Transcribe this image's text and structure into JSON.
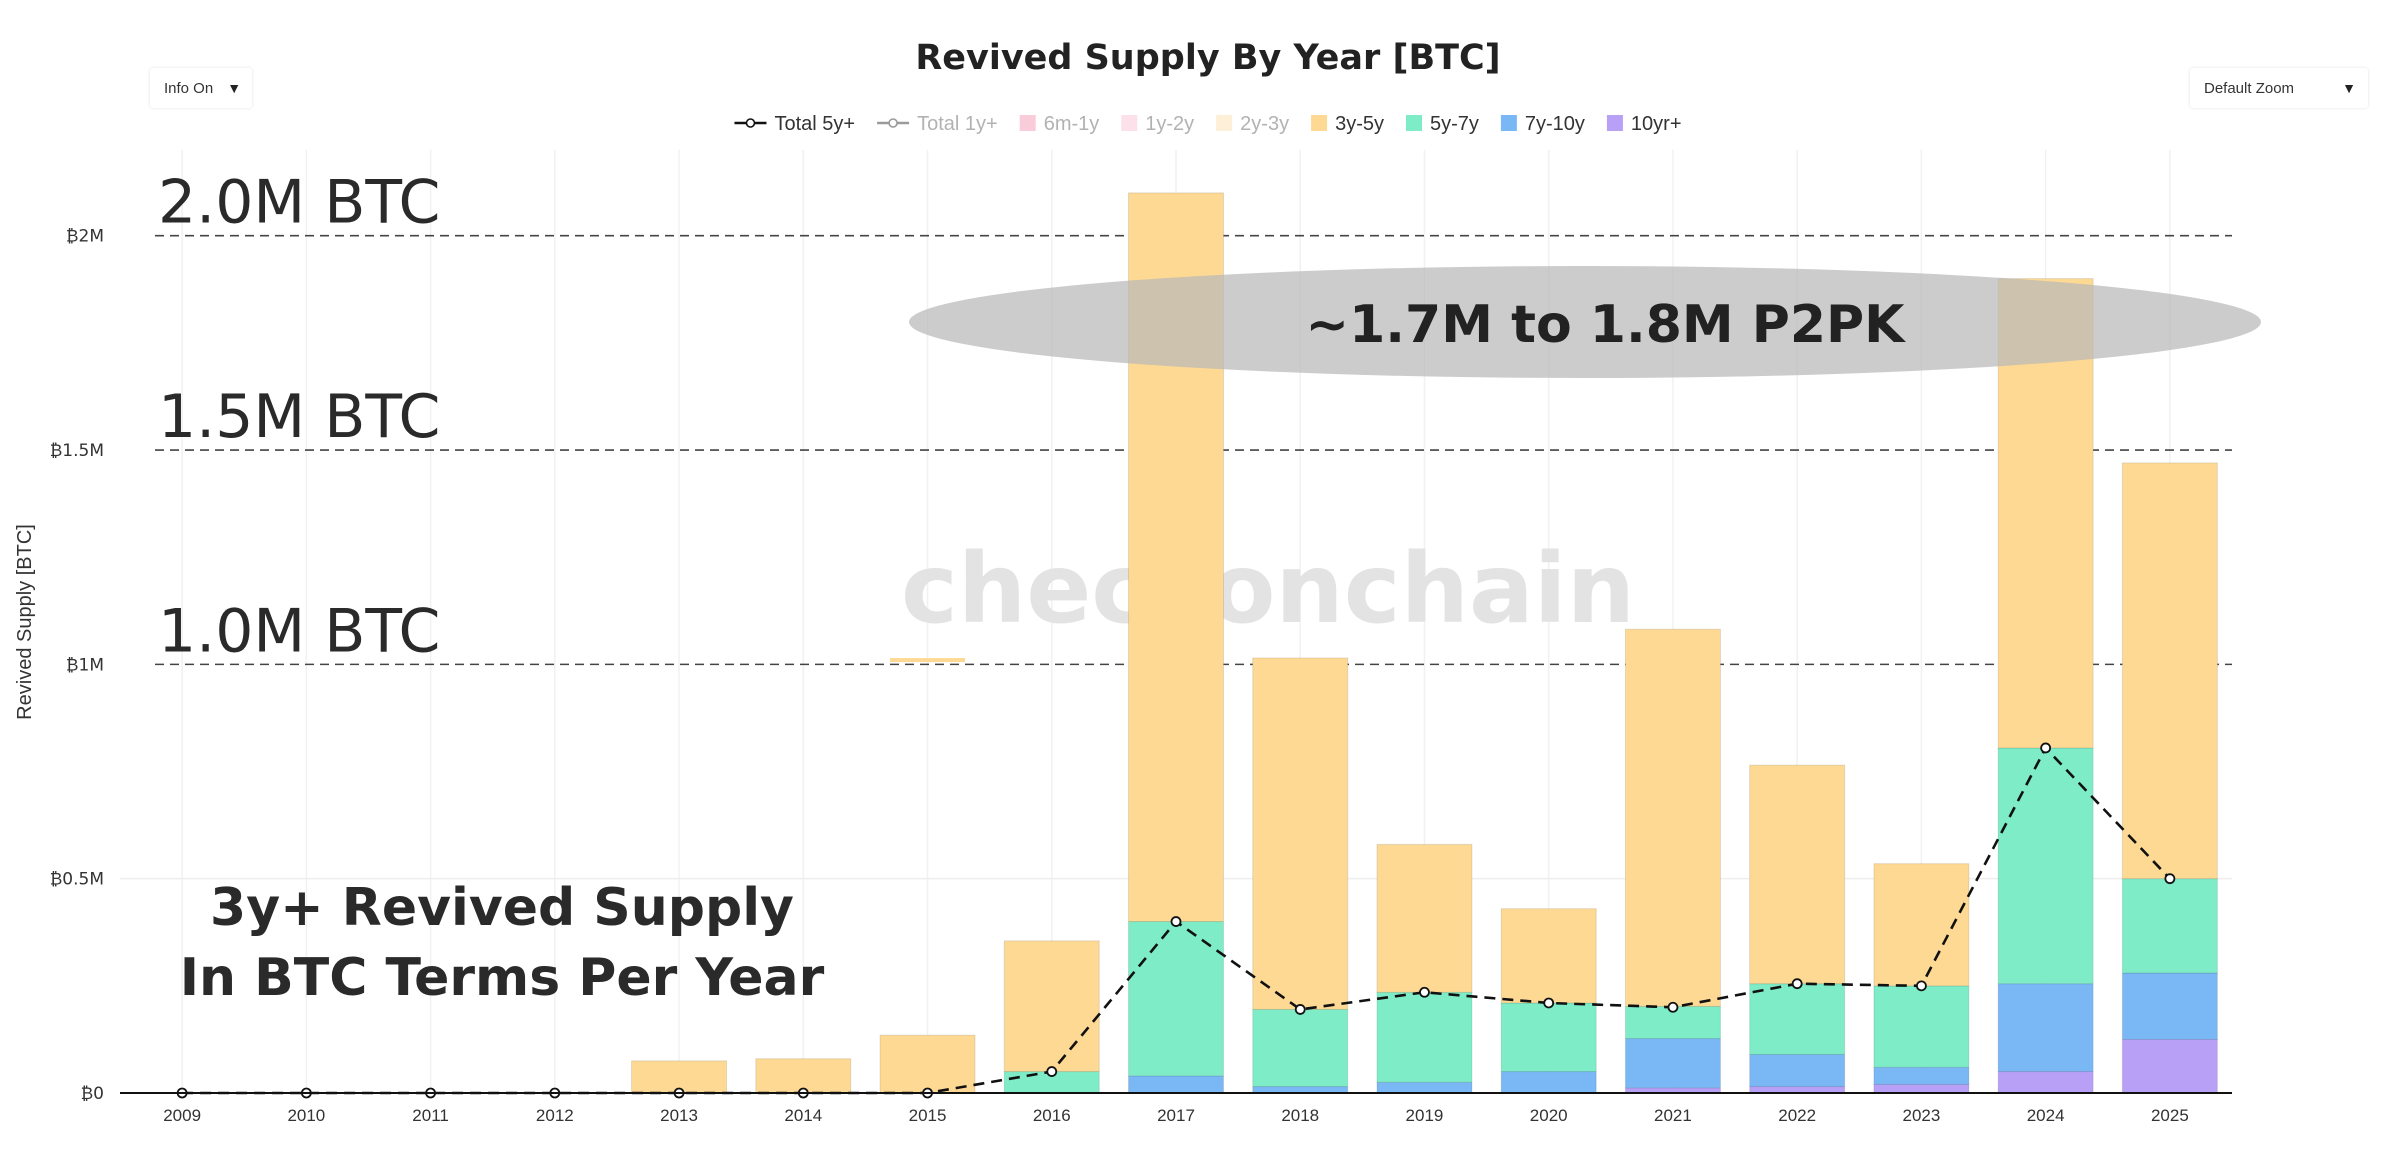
{
  "chart_data": {
    "type": "bar",
    "title": "Revived Supply By Year [BTC]",
    "xlabel": "",
    "ylabel": "Revived Supply [BTC]",
    "ylim": [
      0,
      2200000
    ],
    "categories": [
      "2009",
      "2010",
      "2011",
      "2012",
      "2013",
      "2014",
      "2015",
      "2016",
      "2017",
      "2018",
      "2019",
      "2020",
      "2021",
      "2022",
      "2023",
      "2024",
      "2025"
    ],
    "y_ticks": [
      {
        "value": 0,
        "label": "₿0"
      },
      {
        "value": 500000,
        "label": "₿0.5M"
      },
      {
        "value": 1000000,
        "label": "₿1M"
      },
      {
        "value": 1500000,
        "label": "₿1.5M"
      },
      {
        "value": 2000000,
        "label": "₿2M"
      }
    ],
    "series": [
      {
        "name": "10yr+",
        "kind": "bar",
        "color": "#b9a0f7",
        "values": [
          0,
          0,
          0,
          0,
          0,
          0,
          0,
          0,
          0,
          0,
          0,
          0,
          12000,
          15000,
          20000,
          50000,
          125000
        ]
      },
      {
        "name": "7y-10y",
        "kind": "bar",
        "color": "#7ab8f5",
        "values": [
          0,
          0,
          0,
          0,
          0,
          0,
          0,
          0,
          40000,
          15000,
          25000,
          50000,
          115000,
          75000,
          40000,
          205000,
          155000
        ]
      },
      {
        "name": "5y-7y",
        "kind": "bar",
        "color": "#7decc7",
        "values": [
          0,
          0,
          0,
          0,
          0,
          0,
          0,
          50000,
          360000,
          180000,
          210000,
          160000,
          75000,
          165000,
          190000,
          550000,
          220000
        ]
      },
      {
        "name": "3y-5y",
        "kind": "bar",
        "color": "#fdd994",
        "values": [
          0,
          0,
          0,
          0,
          75000,
          80000,
          135000,
          305000,
          1700000,
          820000,
          345000,
          220000,
          880000,
          510000,
          285000,
          1095000,
          970000
        ]
      },
      {
        "name": "2y-3y",
        "kind": "bar",
        "color": "#fde2b8",
        "values": [
          0,
          0,
          0,
          0,
          0,
          0,
          0,
          0,
          0,
          0,
          0,
          0,
          0,
          0,
          0,
          0,
          0
        ]
      },
      {
        "name": "1y-2y",
        "kind": "bar",
        "color": "#f9c8d8",
        "values": [
          0,
          0,
          0,
          0,
          0,
          0,
          0,
          0,
          0,
          0,
          0,
          0,
          0,
          0,
          0,
          0,
          0
        ]
      },
      {
        "name": "6m-1y",
        "kind": "bar",
        "color": "#f3a3ba",
        "values": [
          0,
          0,
          0,
          0,
          0,
          0,
          0,
          0,
          0,
          0,
          0,
          0,
          0,
          0,
          0,
          0,
          0
        ]
      },
      {
        "name": "Total 5y+",
        "kind": "line",
        "color": "#111111",
        "values": [
          0,
          0,
          0,
          0,
          0,
          0,
          0,
          50000,
          400000,
          195000,
          235000,
          210000,
          200000,
          255000,
          250000,
          805000,
          500000
        ]
      },
      {
        "name": "Total 1y+",
        "kind": "line",
        "color": "#888888",
        "values": [
          0,
          0,
          0,
          0,
          0,
          0,
          0,
          0,
          0,
          0,
          0,
          0,
          0,
          0,
          0,
          0,
          0
        ]
      }
    ],
    "stray_segment": {
      "category": "2015",
      "value": 1010000,
      "color": "#fdd994"
    },
    "legend": {
      "placement": "top-center",
      "items": [
        {
          "label": "Total 5y+",
          "marker": "line-dot",
          "color": "#111111",
          "muted": false
        },
        {
          "label": "Total 1y+",
          "marker": "line-dot",
          "color": "#9a9a9a",
          "muted": true
        },
        {
          "label": "6m-1y",
          "marker": "square",
          "color": "#f3a3ba",
          "muted": true
        },
        {
          "label": "1y-2y",
          "marker": "square",
          "color": "#f9c8d8",
          "muted": true
        },
        {
          "label": "2y-3y",
          "marker": "square",
          "color": "#fde2b8",
          "muted": true
        },
        {
          "label": "3y-5y",
          "marker": "square",
          "color": "#fdd994",
          "muted": false
        },
        {
          "label": "5y-7y",
          "marker": "square",
          "color": "#7decc7",
          "muted": false
        },
        {
          "label": "7y-10y",
          "marker": "square",
          "color": "#7ab8f5",
          "muted": false
        },
        {
          "label": "10yr+",
          "marker": "square",
          "color": "#b9a0f7",
          "muted": false
        }
      ]
    },
    "reference_lines": [
      {
        "value": 2000000,
        "label": "2.0M BTC"
      },
      {
        "value": 1500000,
        "label": "1.5M BTC"
      },
      {
        "value": 1000000,
        "label": "1.0M BTC"
      }
    ],
    "annotations": {
      "ellipse_label": "~1.7M to 1.8M P2PK",
      "caption_line1": "3y+ Revived Supply",
      "caption_line2": "In BTC Terms Per Year",
      "watermark": "checkonchain"
    }
  },
  "controls": {
    "info_toggle": "Info On",
    "zoom_select": "Default Zoom"
  }
}
